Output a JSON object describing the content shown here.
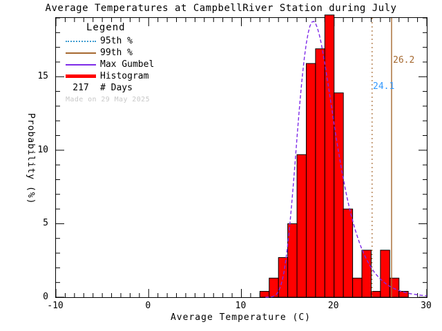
{
  "title": "Average Temperatures at CampbellRiver Station during July",
  "axes": {
    "x": {
      "label": "Average Temperature (C)",
      "min": -10,
      "max": 30,
      "ticks": [
        -10,
        0,
        10,
        20,
        30
      ],
      "minor_step": 1
    },
    "y": {
      "label": "Probability (%)",
      "plot_max": 19,
      "ticks": [
        0,
        5,
        10,
        15
      ],
      "minor_step": 1
    }
  },
  "legend": {
    "title": "Legend",
    "items": [
      {
        "id": "p95",
        "label": "95th %"
      },
      {
        "id": "p99",
        "label": "99th %"
      },
      {
        "id": "gumbel",
        "label": "Max Gumbel"
      },
      {
        "id": "histogram",
        "label": "Histogram"
      }
    ],
    "days_count": "217",
    "days_label": "# Days",
    "made_on": "Made on 29 May 2025"
  },
  "annotations": {
    "p95_label": "24.1",
    "p99_label": "26.2"
  },
  "chart_data": {
    "type": "bar",
    "subtype": "histogram-with-gumbel-fit",
    "title": "Average Temperatures at CampbellRiver Station during July",
    "xlabel": "Average Temperature (C)",
    "ylabel": "Probability (%)",
    "xlim": [
      -10,
      30
    ],
    "ylim": [
      0,
      19
    ],
    "grid": false,
    "n_days": 217,
    "histogram": {
      "bin_width_c": 1,
      "bin_start_temps_c": [
        12,
        13,
        14,
        15,
        16,
        17,
        18,
        19,
        20,
        21,
        22,
        23,
        24,
        25,
        26,
        27
      ],
      "probabilities_pct": [
        0.4,
        1.3,
        2.7,
        5.0,
        9.7,
        15.9,
        16.9,
        19.2,
        13.9,
        6.0,
        1.3,
        3.2,
        0.4,
        3.2,
        1.3,
        0.4
      ]
    },
    "gumbel_fit": {
      "mu_c": 17.75,
      "beta_c": 1.96,
      "peak_pct": 18.8
    },
    "percentiles_c": {
      "p95": 24.1,
      "p99": 26.2
    }
  },
  "colors": {
    "background": "#ffffff",
    "frame": "#000000",
    "histogram_fill": "#ff0000",
    "histogram_outline": "#000000",
    "gumbel_line": "#7d2ae8",
    "p95_line": "#a5682f",
    "p99_line": "#a5682f",
    "p95_label_text": "#3399ff",
    "p99_label_text": "#a5682f",
    "legend_p95_swatch": "#3a9ad0",
    "made_on_text": "#c8c8c8"
  }
}
